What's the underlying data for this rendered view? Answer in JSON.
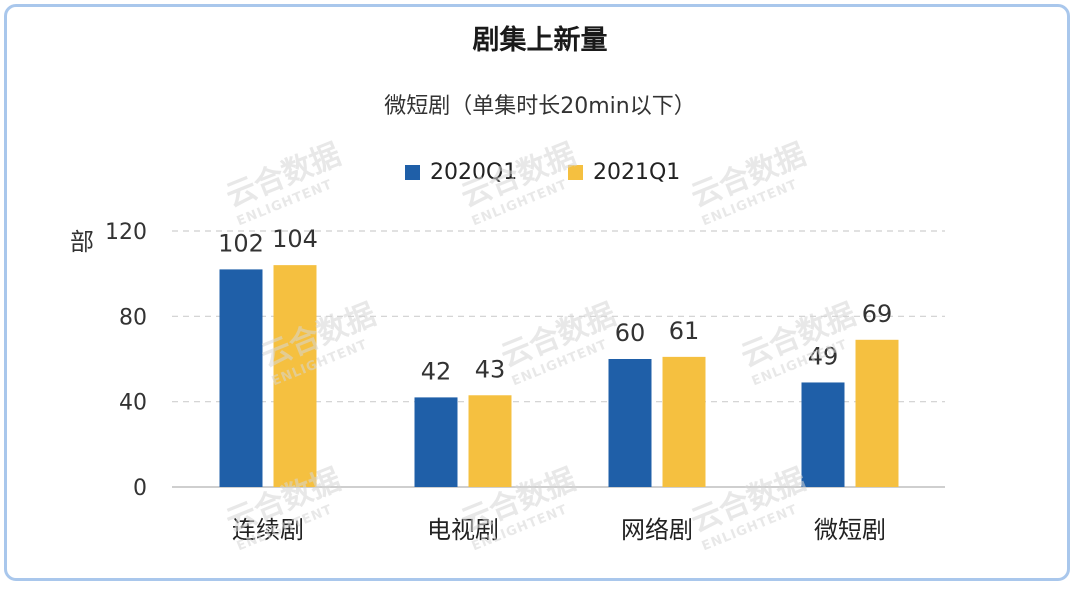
{
  "chart_data": {
    "type": "bar",
    "title": "剧集上新量",
    "subtitle": "微短剧（单集时长20min以下）",
    "ylabel": "部",
    "ylim": [
      0,
      120
    ],
    "yticks": [
      0,
      40,
      80,
      120
    ],
    "grid": true,
    "legend_position": "top-center",
    "categories": [
      "连续剧",
      "电视剧",
      "网络剧",
      "微短剧"
    ],
    "series": [
      {
        "name": "2020Q1",
        "color": "#1f5fa8",
        "values": [
          102,
          42,
          60,
          49
        ]
      },
      {
        "name": "2021Q1",
        "color": "#f5c040",
        "values": [
          104,
          43,
          61,
          69
        ]
      }
    ]
  },
  "watermark": {
    "text_cn": "云合数据",
    "text_en": "ENLIGHTENT"
  }
}
